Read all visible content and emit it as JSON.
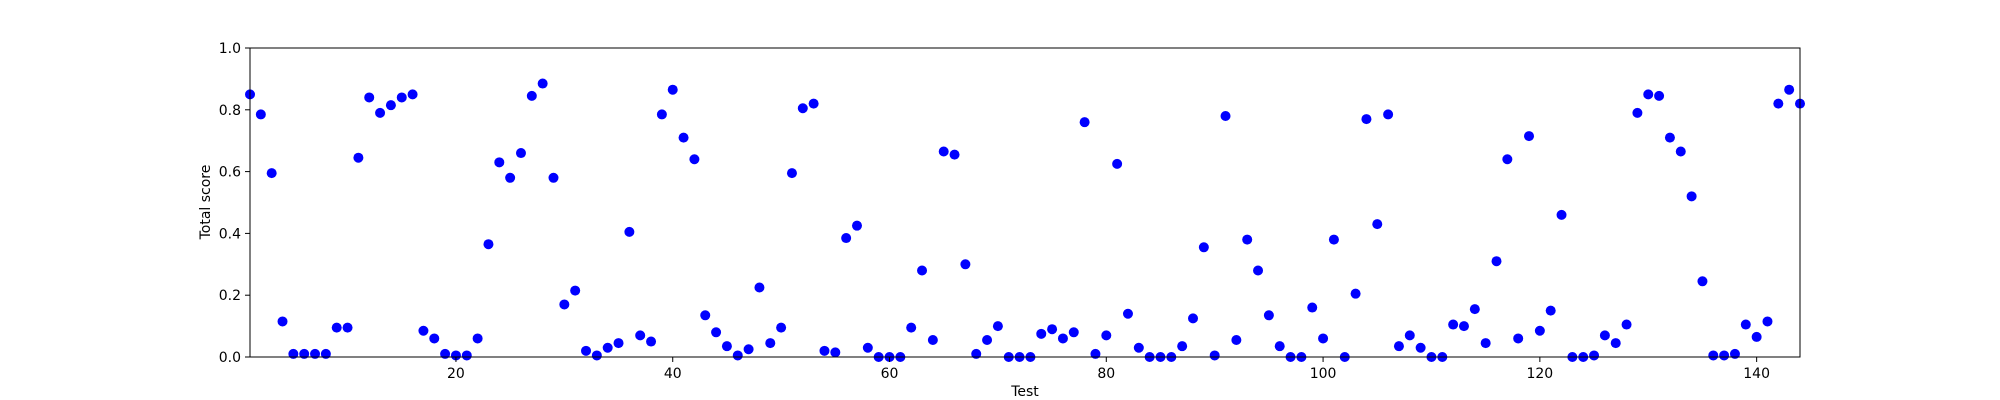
{
  "chart_data": {
    "type": "scatter",
    "title": "",
    "xlabel": "Test",
    "ylabel": "Total score",
    "xlim": [
      1,
      144
    ],
    "ylim": [
      0,
      1.0
    ],
    "x_ticks": [
      20,
      40,
      60,
      80,
      100,
      120,
      140
    ],
    "x_tick_labels": [
      "20",
      "40",
      "60",
      "80",
      "100",
      "120",
      "140"
    ],
    "y_ticks": [
      0,
      0.2,
      0.4,
      0.6,
      0.8,
      1.0
    ],
    "y_tick_labels": [
      "0.0",
      "0.2",
      "0.4",
      "0.6",
      "0.8",
      "1.0"
    ],
    "grid": false,
    "marker_color": "#0000ff",
    "series": [
      {
        "x": [
          1,
          2,
          3,
          4,
          5,
          6,
          7,
          8,
          9,
          10,
          11,
          12,
          13,
          14,
          15,
          16,
          17,
          18,
          19,
          20,
          21,
          22,
          23,
          24,
          25,
          26,
          27,
          28,
          29,
          30,
          31,
          32,
          33,
          34,
          35,
          36,
          37,
          38,
          39,
          40,
          41,
          42,
          43,
          44,
          45,
          46,
          47,
          48,
          49,
          50,
          51,
          52,
          53,
          54,
          55,
          56,
          57,
          58,
          59,
          60,
          61,
          62,
          63,
          64,
          65,
          66,
          67,
          68,
          69,
          70,
          71,
          72,
          73,
          74,
          75,
          76,
          77,
          78,
          79,
          80,
          81,
          82,
          83,
          84,
          85,
          86,
          87,
          88,
          89,
          90,
          91,
          92,
          93,
          94,
          95,
          96,
          97,
          98,
          99,
          100,
          101,
          102,
          103,
          104,
          105,
          106,
          107,
          108,
          109,
          110,
          111,
          112,
          113,
          114,
          115,
          116,
          117,
          118,
          119,
          120,
          121,
          122,
          123,
          124,
          125,
          126,
          127,
          128,
          129,
          130,
          131,
          132,
          133,
          134,
          135,
          136,
          137,
          138,
          139,
          140,
          141,
          142,
          143,
          144
        ],
        "y": [
          0.85,
          0.785,
          0.595,
          0.115,
          0.01,
          0.01,
          0.01,
          0.01,
          0.095,
          0.095,
          0.645,
          0.84,
          0.79,
          0.815,
          0.84,
          0.85,
          0.085,
          0.06,
          0.01,
          0.005,
          0.005,
          0.06,
          0.365,
          0.63,
          0.58,
          0.66,
          0.845,
          0.885,
          0.58,
          0.17,
          0.215,
          0.02,
          0.005,
          0.03,
          0.045,
          0.405,
          0.07,
          0.05,
          0.785,
          0.865,
          0.71,
          0.64,
          0.135,
          0.08,
          0.035,
          0.005,
          0.025,
          0.225,
          0.045,
          0.095,
          0.595,
          0.805,
          0.82,
          0.02,
          0.015,
          0.385,
          0.425,
          0.03,
          0.0,
          0.0,
          0.0,
          0.095,
          0.28,
          0.055,
          0.665,
          0.655,
          0.3,
          0.01,
          0.055,
          0.1,
          0.0,
          0.0,
          0.0,
          0.075,
          0.09,
          0.06,
          0.08,
          0.76,
          0.01,
          0.07,
          0.625,
          0.14,
          0.03,
          0.0,
          0.0,
          0.0,
          0.035,
          0.125,
          0.355,
          0.005,
          0.78,
          0.055,
          0.38,
          0.28,
          0.135,
          0.035,
          0.0,
          0.0,
          0.16,
          0.06,
          0.38,
          0.0,
          0.205,
          0.77,
          0.43,
          0.785,
          0.035,
          0.07,
          0.03,
          0.0,
          0.0,
          0.105,
          0.1,
          0.155,
          0.045,
          0.31,
          0.64,
          0.06,
          0.715,
          0.085,
          0.15,
          0.46,
          0.0,
          0.0,
          0.005,
          0.07,
          0.045,
          0.105,
          0.79,
          0.85,
          0.845,
          0.71,
          0.665,
          0.52,
          0.245,
          0.005,
          0.005,
          0.01,
          0.105,
          0.065,
          0.115,
          0.82,
          0.865,
          0.82
        ]
      }
    ]
  }
}
